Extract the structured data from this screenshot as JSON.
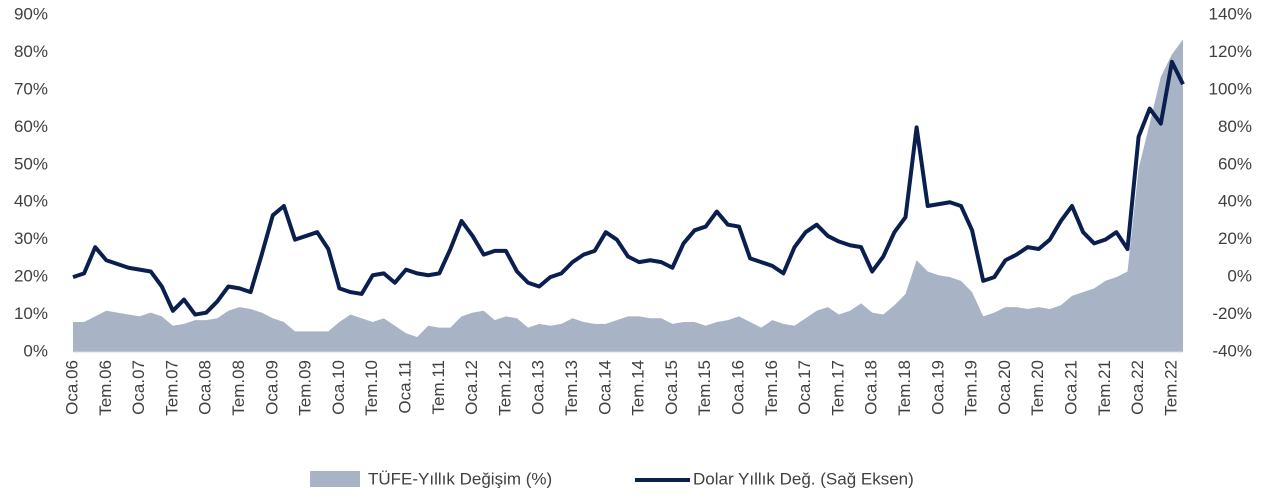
{
  "chart_data": {
    "type": "area-line",
    "categories": [
      "Oca.06",
      null,
      null,
      "Tem.06",
      null,
      null,
      "Oca.07",
      null,
      null,
      "Tem.07",
      null,
      null,
      "Oca.08",
      null,
      null,
      "Tem.08",
      null,
      null,
      "Oca.09",
      null,
      null,
      "Tem.09",
      null,
      null,
      "Oca.10",
      null,
      null,
      "Tem.10",
      null,
      null,
      "Oca.11",
      null,
      null,
      "Tem.11",
      null,
      null,
      "Oca.12",
      null,
      null,
      "Tem.12",
      null,
      null,
      "Oca.13",
      null,
      null,
      "Tem.13",
      null,
      null,
      "Oca.14",
      null,
      null,
      "Tem.14",
      null,
      null,
      "Oca.15",
      null,
      null,
      "Tem.15",
      null,
      null,
      "Oca.16",
      null,
      null,
      "Tem.16",
      null,
      null,
      "Oca.17",
      null,
      null,
      "Tem.17",
      null,
      null,
      "Oca.18",
      null,
      null,
      "Tem.18",
      null,
      null,
      "Oca.19",
      null,
      null,
      "Tem.19",
      null,
      null,
      "Oca.20",
      null,
      null,
      "Tem.20",
      null,
      null,
      "Oca.21",
      null,
      null,
      "Tem.21",
      null,
      null,
      "Oca.22",
      null,
      null,
      "Tem.22",
      null
    ],
    "series": [
      {
        "name": "TÜFE-Yıllık Değişim (%)",
        "color": "#a9b3c6",
        "kind": "area",
        "values": [
          8,
          8,
          9.5,
          11,
          10.5,
          10,
          9.5,
          10.5,
          9.5,
          7,
          7.5,
          8.5,
          8.5,
          9,
          11,
          12,
          11.5,
          10.5,
          9,
          8,
          5.5,
          5.5,
          5.5,
          5.5,
          8,
          10,
          9,
          8,
          9,
          7,
          5,
          4,
          7,
          6.5,
          6.5,
          9.5,
          10.5,
          11,
          8.5,
          9.5,
          9,
          6.5,
          7.5,
          7,
          7.5,
          9,
          8,
          7.5,
          7.5,
          8.5,
          9.5,
          9.5,
          9,
          9,
          7.5,
          8,
          8,
          7,
          8,
          8.5,
          9.5,
          8,
          6.5,
          8.5,
          7.5,
          7,
          9,
          11,
          12,
          10,
          11,
          13,
          10.5,
          10,
          12.5,
          15.5,
          24.5,
          21.5,
          20.5,
          20,
          19,
          16,
          9.5,
          10.5,
          12,
          12,
          11.5,
          12,
          11.5,
          12.5,
          15,
          16,
          17,
          19,
          20,
          21.5,
          49,
          61,
          73.5,
          79.5,
          83.5
        ]
      },
      {
        "name": "Dolar Yıllık Değ. (Sağ Eksen)",
        "color": "#0b1f4f",
        "kind": "line",
        "axis": "y2",
        "values": [
          0,
          2,
          16,
          9,
          7,
          5,
          4,
          3,
          -5,
          -18,
          -12,
          -20,
          -19,
          -13,
          -5,
          -6,
          -8,
          12,
          33,
          38,
          20,
          22,
          24,
          15,
          -6,
          -8,
          -9,
          1,
          2,
          -3,
          4,
          2,
          1,
          2,
          15,
          30,
          22,
          12,
          14,
          14,
          3,
          -3,
          -5,
          0,
          2,
          8,
          12,
          14,
          24,
          20,
          11,
          8,
          9,
          8,
          5,
          18,
          25,
          27,
          35,
          28,
          27,
          10,
          8,
          6,
          2,
          16,
          24,
          28,
          22,
          19,
          17,
          16,
          3,
          11,
          24,
          32,
          80,
          38,
          39,
          40,
          38,
          25,
          -2,
          0,
          9,
          12,
          16,
          15,
          20,
          30,
          38,
          24,
          18,
          20,
          24,
          15,
          75,
          90,
          82,
          115,
          103
        ]
      }
    ],
    "ylim": [
      0,
      90
    ],
    "yticks": [
      {
        "value": 0,
        "label": "0%"
      },
      {
        "value": 10,
        "label": "10%"
      },
      {
        "value": 20,
        "label": "20%"
      },
      {
        "value": 30,
        "label": "30%"
      },
      {
        "value": 40,
        "label": "40%"
      },
      {
        "value": 50,
        "label": "50%"
      },
      {
        "value": 60,
        "label": "60%"
      },
      {
        "value": 70,
        "label": "70%"
      },
      {
        "value": 80,
        "label": "80%"
      },
      {
        "value": 90,
        "label": "90%"
      }
    ],
    "y2lim": [
      -40,
      140
    ],
    "y2ticks": [
      {
        "value": -40,
        "label": "-40%"
      },
      {
        "value": -20,
        "label": "-20%"
      },
      {
        "value": 0,
        "label": "0%"
      },
      {
        "value": 20,
        "label": "20%"
      },
      {
        "value": 40,
        "label": "40%"
      },
      {
        "value": 60,
        "label": "60%"
      },
      {
        "value": 80,
        "label": "80%"
      },
      {
        "value": 100,
        "label": "100%"
      },
      {
        "value": 120,
        "label": "120%"
      },
      {
        "value": 140,
        "label": "140%"
      }
    ],
    "legend": "bottom"
  }
}
